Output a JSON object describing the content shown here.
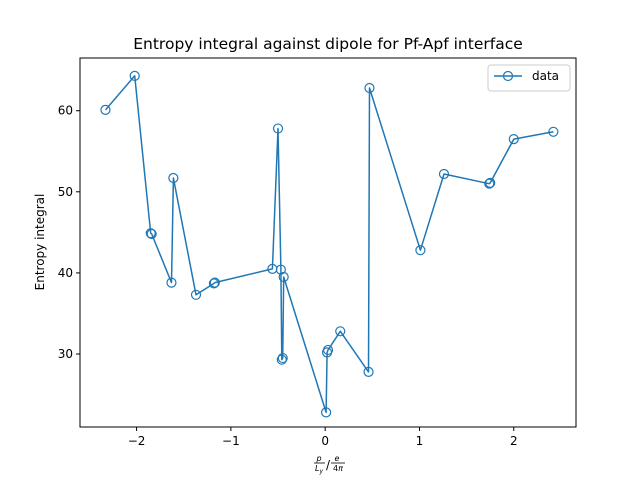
{
  "chart_data": {
    "type": "line",
    "title": "Entropy integral against dipole for Pf-Apf interface",
    "xlabel": "p/Ly / e/4π",
    "ylabel": "Entropy integral",
    "xlim": [
      -2.6,
      2.66
    ],
    "ylim": [
      21.0,
      66.5
    ],
    "xticks": [
      -2,
      -1,
      0,
      1,
      2
    ],
    "xtick_labels": [
      "−2",
      "−1",
      "0",
      "1",
      "2"
    ],
    "yticks": [
      30,
      40,
      50,
      60
    ],
    "ytick_labels": [
      "30",
      "40",
      "50",
      "60"
    ],
    "grid": false,
    "legend_position": "top-right",
    "series": [
      {
        "name": "data",
        "color": "#1f77b4",
        "marker": "hollow-circle",
        "points": [
          [
            -2.33,
            60.1
          ],
          [
            -2.02,
            64.3
          ],
          [
            -1.85,
            44.9
          ],
          [
            -1.84,
            44.8
          ],
          [
            -1.63,
            38.8
          ],
          [
            -1.61,
            51.7
          ],
          [
            -1.37,
            37.3
          ],
          [
            -1.18,
            38.7
          ],
          [
            -1.17,
            38.8
          ],
          [
            -0.56,
            40.5
          ],
          [
            -0.5,
            57.8
          ],
          [
            -0.47,
            40.4
          ],
          [
            -0.46,
            29.3
          ],
          [
            -0.45,
            29.5
          ],
          [
            -0.44,
            39.5
          ],
          [
            0.01,
            22.8
          ],
          [
            0.02,
            30.2
          ],
          [
            0.03,
            30.5
          ],
          [
            0.16,
            32.8
          ],
          [
            0.46,
            27.8
          ],
          [
            0.47,
            62.8
          ],
          [
            1.01,
            42.8
          ],
          [
            1.26,
            52.2
          ],
          [
            1.74,
            51.0
          ],
          [
            1.75,
            51.1
          ],
          [
            2.0,
            56.5
          ],
          [
            2.42,
            57.4
          ]
        ]
      }
    ]
  }
}
